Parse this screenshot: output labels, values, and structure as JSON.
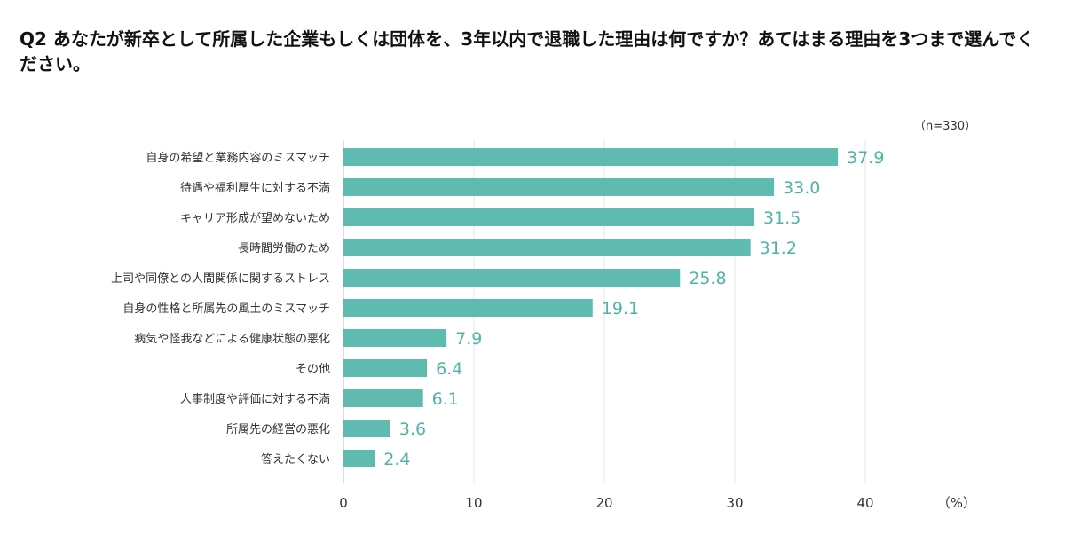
{
  "question": "Q2 あなたが新卒として所属した企業もしくは団体を、3年以内で退職した理由は何ですか？あてはまる理由を3つまで選んでください。",
  "chart_data": {
    "type": "bar",
    "orientation": "horizontal",
    "sample_note": "（n=330）",
    "unit_label": "（%）",
    "categories": [
      "自身の希望と業務内容のミスマッチ",
      "待遇や福利厚生に対する不満",
      "キャリア形成が望めないため",
      "長時間労働のため",
      "上司や同僚との人間関係に関するストレス",
      "自身の性格と所属先の風土のミスマッチ",
      "病気や怪我などによる健康状態の悪化",
      "その他",
      "人事制度や評価に対する不満",
      "所属先の経営の悪化",
      "答えたくない"
    ],
    "values": [
      37.9,
      33.0,
      31.5,
      31.2,
      25.8,
      19.1,
      7.9,
      6.4,
      6.1,
      3.6,
      2.4
    ],
    "value_labels": [
      "37.9",
      "33.0",
      "31.5",
      "31.2",
      "25.8",
      "19.1",
      "7.9",
      "6.4",
      "6.1",
      "3.6",
      "2.4"
    ],
    "xlim": [
      0,
      47
    ],
    "ticks": [
      0,
      10,
      20,
      30,
      40
    ],
    "tick_labels": [
      "0",
      "10",
      "20",
      "30",
      "40"
    ],
    "grid": true,
    "bar_color": "#5fbab0",
    "label_color": "#4fb3a6",
    "grid_color": "#e4e4e4"
  }
}
